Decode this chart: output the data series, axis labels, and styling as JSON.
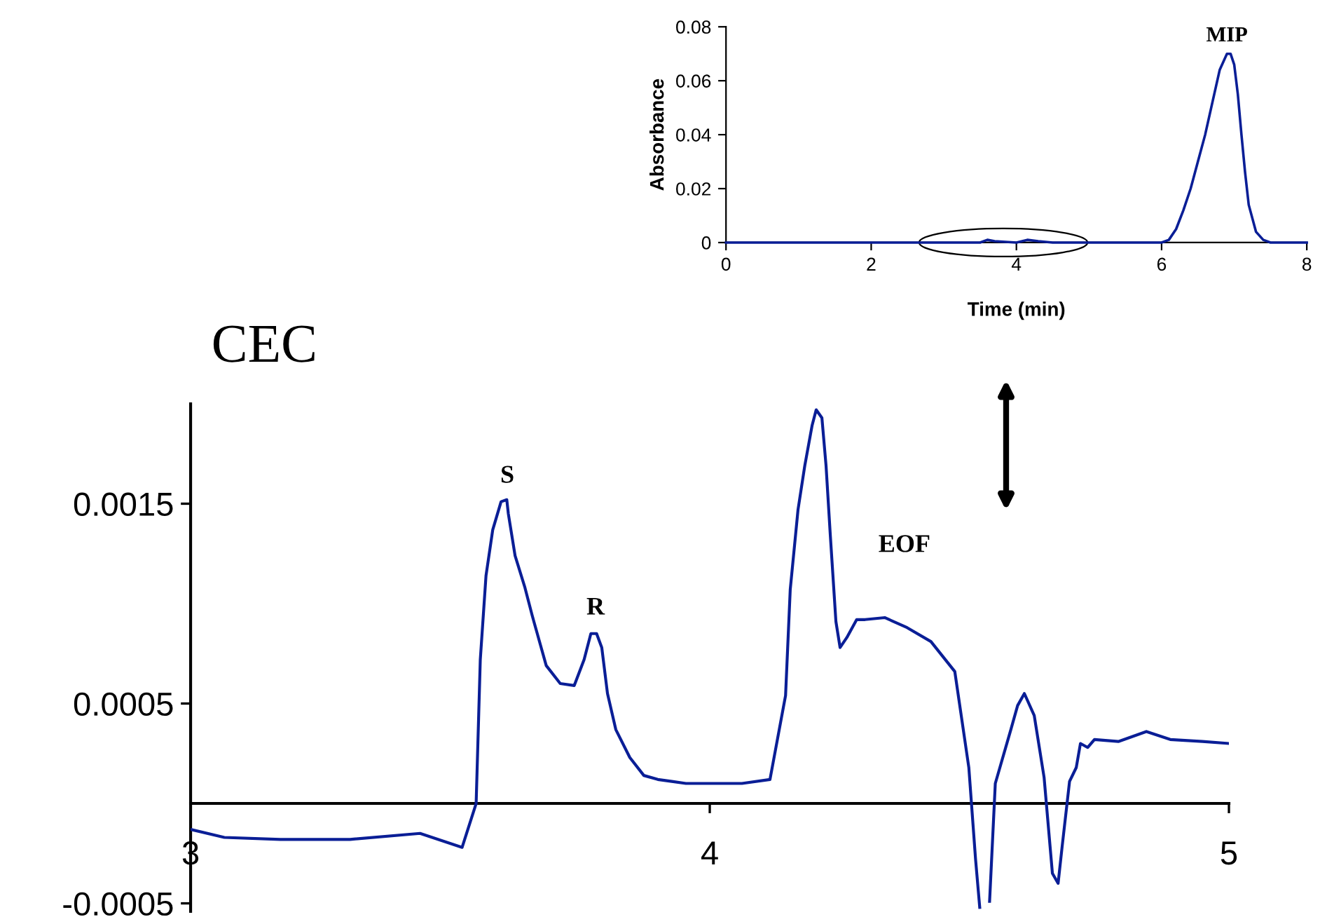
{
  "chart_data": [
    {
      "type": "line",
      "xlabel": "Time (min)",
      "ylabel": "Absorbance",
      "xlim": [
        0,
        8
      ],
      "ylim": [
        0,
        0.08
      ],
      "xticks": [
        0,
        2,
        4,
        6,
        8
      ],
      "yticks": [
        0,
        0.02,
        0.04,
        0.06,
        0.08
      ],
      "marker": "none",
      "line_style": "solid",
      "annotations": [
        {
          "text": "MIP",
          "x": 6.9,
          "y": 0.07
        }
      ],
      "series": [
        {
          "color": "#0a1e96",
          "x": [
            0,
            1,
            2,
            3,
            3.5,
            3.6,
            3.7,
            4.0,
            4.15,
            4.3,
            4.5,
            5,
            5.5,
            6.0,
            6.1,
            6.2,
            6.3,
            6.4,
            6.5,
            6.6,
            6.7,
            6.8,
            6.9,
            6.95,
            7.0,
            7.05,
            7.1,
            7.15,
            7.2,
            7.3,
            7.4,
            7.5,
            8
          ],
          "values": [
            0,
            0,
            0,
            0,
            0,
            0.001,
            0.0005,
            0,
            0.001,
            0.0005,
            0,
            0,
            0,
            0,
            0.001,
            0.005,
            0.012,
            0.02,
            0.03,
            0.04,
            0.052,
            0.064,
            0.07,
            0.07,
            0.066,
            0.055,
            0.04,
            0.026,
            0.014,
            0.004,
            0.001,
            0,
            0
          ]
        }
      ]
    },
    {
      "type": "line",
      "title": "CEC",
      "xlim": [
        3,
        5
      ],
      "ylim": [
        -0.00054,
        0.002
      ],
      "xticks": [
        3,
        4,
        5
      ],
      "yticks": [
        -0.0005,
        0.0005,
        0.0015
      ],
      "marker": "none",
      "line_style": "solid",
      "annotations": [
        {
          "text": "S",
          "x": 3.61,
          "y": 0.00152
        },
        {
          "text": "R",
          "x": 3.78,
          "y": 0.00086
        },
        {
          "text": "EOF",
          "x": 4.33,
          "y": 0.00092
        }
      ],
      "series": [
        {
          "color": "#0a1e96",
          "x": [
            3.0,
            3.065,
            3.173,
            3.307,
            3.442,
            3.523,
            3.55,
            3.558,
            3.569,
            3.582,
            3.598,
            3.609,
            3.612,
            3.625,
            3.644,
            3.658,
            3.685,
            3.712,
            3.739,
            3.758,
            3.771,
            3.782,
            3.792,
            3.803,
            3.819,
            3.846,
            3.873,
            3.9,
            3.927,
            3.954,
            4.008,
            4.062,
            4.116,
            4.146,
            4.155,
            4.17,
            4.183,
            4.197,
            4.205,
            4.216,
            4.224,
            4.232,
            4.243,
            4.251,
            4.264,
            4.283,
            4.299,
            4.337,
            4.38,
            4.426,
            4.472,
            4.499,
            4.512,
            4.52,
            4.528,
            4.539,
            4.55,
            4.58,
            4.593,
            4.606,
            4.625,
            4.644,
            4.66,
            4.671,
            4.679,
            4.693,
            4.706,
            4.714,
            4.728,
            4.741,
            4.787,
            4.841,
            4.887,
            4.949,
            5.0
          ],
          "values": [
            -0.00013,
            -0.00017,
            -0.00018,
            -0.00018,
            -0.00015,
            -0.00022,
            0.0,
            0.00072,
            0.00114,
            0.00137,
            0.00151,
            0.00152,
            0.00145,
            0.00124,
            0.00108,
            0.00094,
            0.00069,
            0.0006,
            0.00059,
            0.00072,
            0.00085,
            0.00085,
            0.00078,
            0.00055,
            0.00037,
            0.00023,
            0.00014,
            0.00012,
            0.00011,
            0.0001,
            0.0001,
            0.0001,
            0.00012,
            0.00054,
            0.00107,
            0.00147,
            0.00169,
            0.00189,
            0.00197,
            0.00193,
            0.00169,
            0.00135,
            0.00091,
            0.00078,
            0.00083,
            0.00092,
            0.00092,
            0.00093,
            0.00088,
            0.00081,
            0.00066,
            0.00018,
            -0.00028,
            -0.00052,
            null,
            -0.00049,
            0.0001,
            0.00037,
            0.00049,
            0.00055,
            0.00044,
            0.00013,
            -0.00035,
            -0.0004,
            -0.00021,
            0.00011,
            0.00018,
            0.0003,
            0.00028,
            0.00032,
            0.00031,
            0.00036,
            0.00032,
            0.00031,
            0.0003
          ]
        }
      ]
    }
  ]
}
